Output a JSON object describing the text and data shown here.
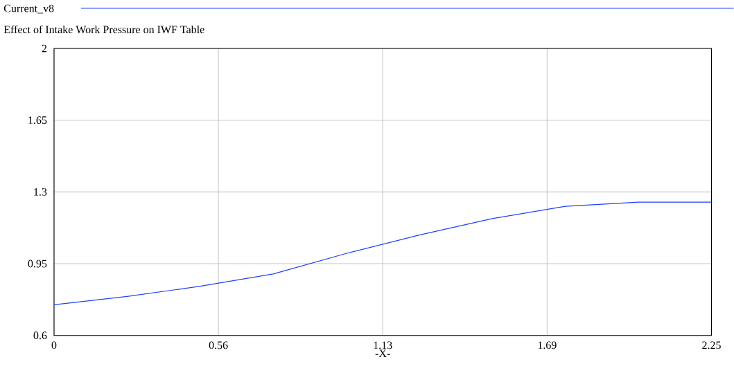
{
  "chart_data": {
    "type": "line",
    "title": "Effect of Intake Work Pressure on IWF Table",
    "xlabel": "-X-",
    "x": [
      0,
      0.25,
      0.5,
      0.75,
      1.0,
      1.25,
      1.5,
      1.75,
      2.0,
      2.25
    ],
    "series": [
      {
        "name": "Current_v8",
        "color": "#1f3fff",
        "values": [
          0.75,
          0.79,
          0.84,
          0.9,
          1.0,
          1.09,
          1.17,
          1.23,
          1.25,
          1.25
        ]
      }
    ],
    "xlim": [
      0,
      2.25
    ],
    "ylim": [
      0.6,
      2
    ],
    "xticks": [
      0,
      {
        "value": 0.5625,
        "label": "0.56"
      },
      {
        "value": 1.125,
        "label": "1.13"
      },
      {
        "value": 1.6875,
        "label": "1.69"
      },
      2.25
    ],
    "yticks": [
      0.6,
      0.95,
      1.3,
      1.65,
      2
    ],
    "grid": true,
    "legend": "top",
    "marker": "none",
    "line_style": "solid"
  }
}
